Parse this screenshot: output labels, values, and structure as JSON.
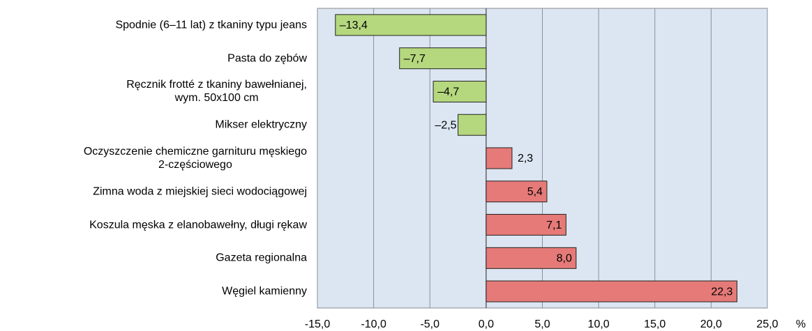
{
  "chart_data": {
    "type": "bar",
    "orientation": "horizontal",
    "categories": [
      "Spodnie (6–11 lat) z tkaniny typu jeans",
      "Pasta do zębów",
      "Ręcznik frotté z tkaniny bawełnianej,\nwym. 50x100 cm",
      "Mikser elektryczny",
      "Oczyszczenie chemiczne garnituru męskiego\n2-częściowego",
      "Zimna woda z miejskiej sieci wodociągowej",
      "Koszula męska z elanobawełny, długi rękaw",
      "Gazeta regionalna",
      "Węgiel kamienny"
    ],
    "values": [
      -13.4,
      -7.7,
      -4.7,
      -2.5,
      2.3,
      5.4,
      7.1,
      8.0,
      22.3
    ],
    "value_labels": [
      "–13,4",
      "–7,7",
      "–4,7",
      "–2,5",
      "2,3",
      "5,4",
      "7,1",
      "8,0",
      "22,3"
    ],
    "color_negative": "#b5d77e",
    "color_positive": "#e57a78",
    "xlim": [
      -15,
      25
    ],
    "xticks": [
      {
        "value": -15,
        "label": "-15,0"
      },
      {
        "value": -10,
        "label": "-10,0"
      },
      {
        "value": -5,
        "label": "-5,0"
      },
      {
        "value": 0,
        "label": "0,0"
      },
      {
        "value": 5,
        "label": "5,0"
      },
      {
        "value": 10,
        "label": "10,0"
      },
      {
        "value": 15,
        "label": "15,0"
      },
      {
        "value": 20,
        "label": "20,0"
      },
      {
        "value": 25,
        "label": "25,0"
      }
    ],
    "x_label": "%",
    "grid": true
  }
}
